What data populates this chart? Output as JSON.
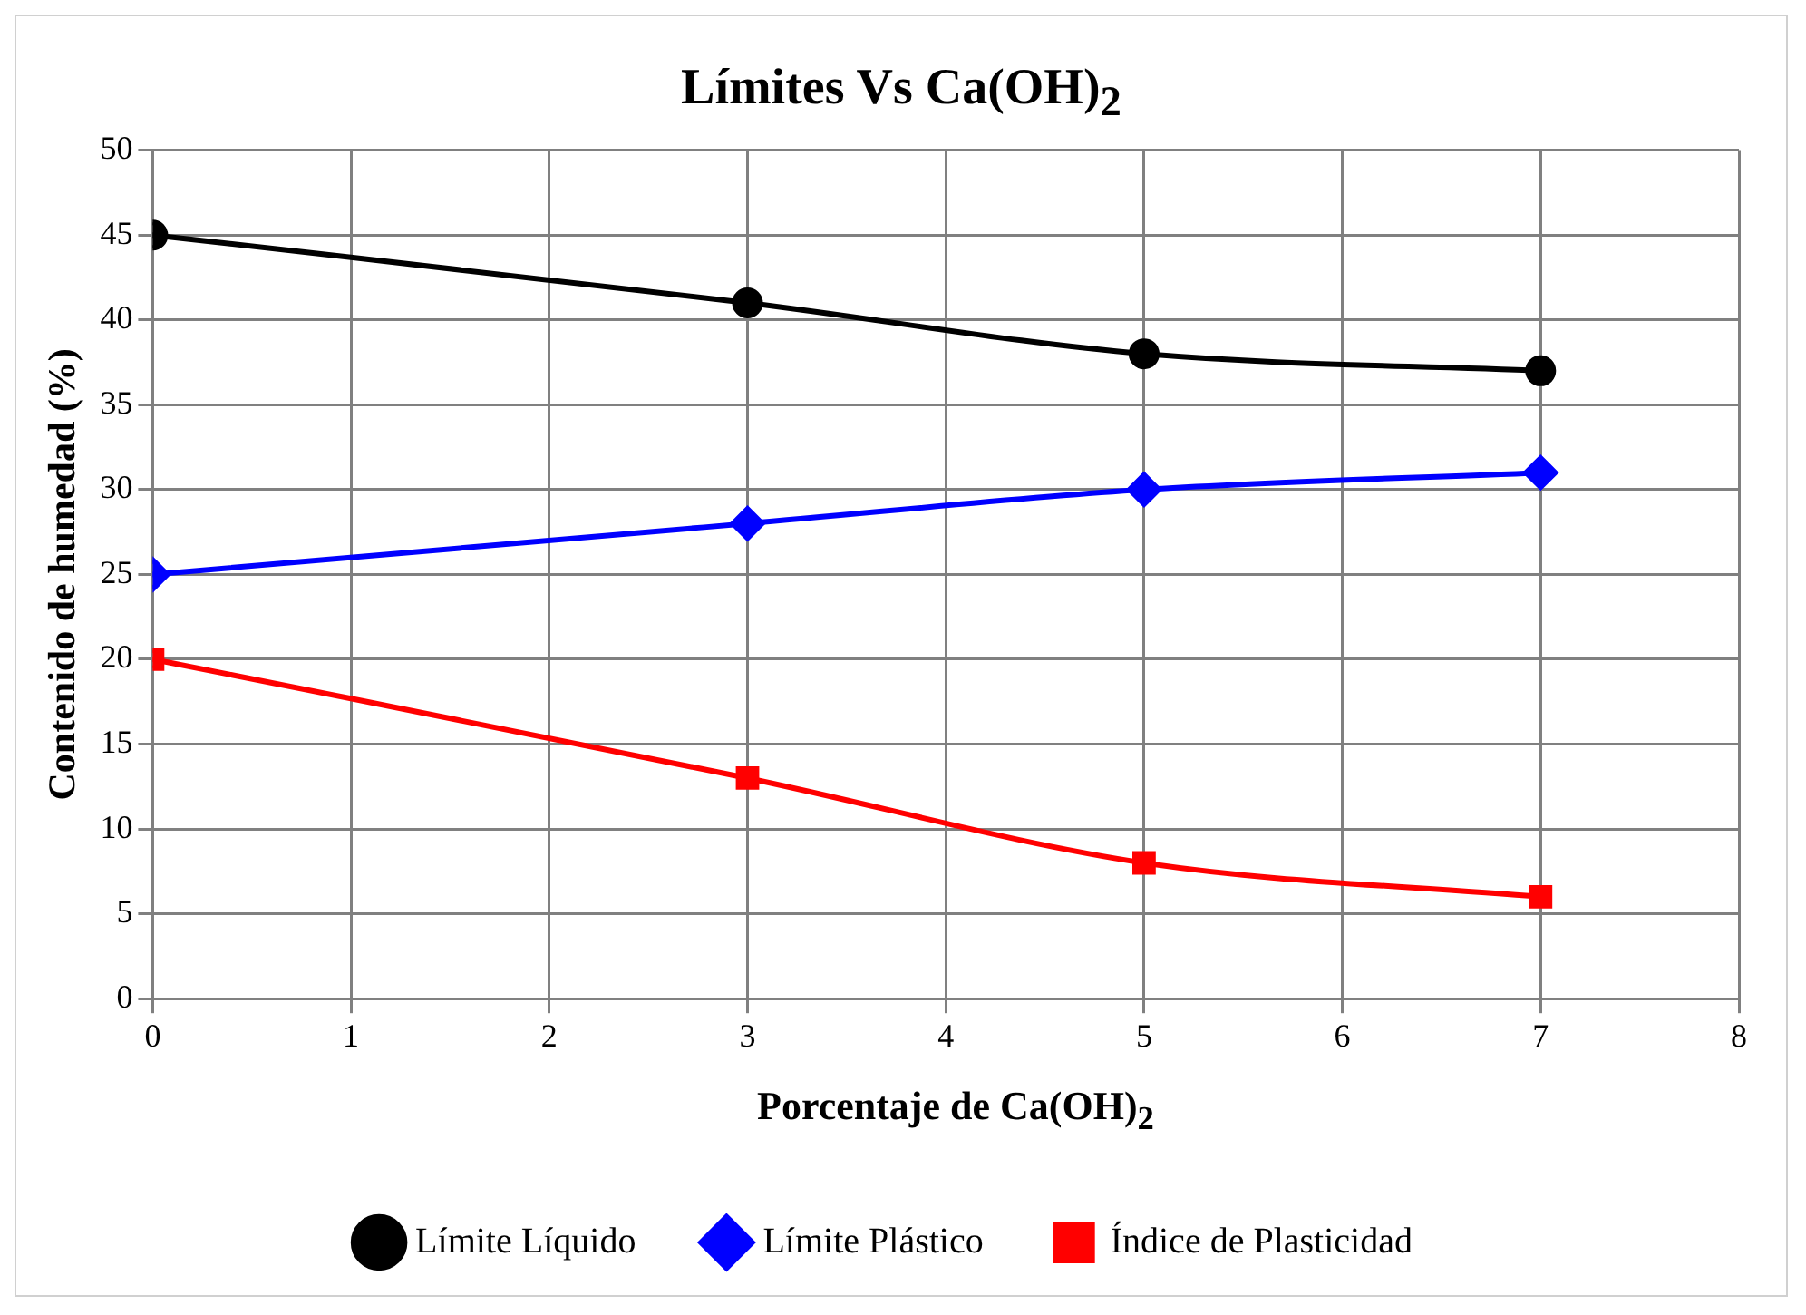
{
  "chart_data": {
    "type": "line",
    "title": "Límites Vs Ca(OH)$_{2}$",
    "xlabel": "Porcentaje de Ca(OH)$_{2}$",
    "ylabel": "Contenido de humedad (%)",
    "x": [
      0,
      3,
      5,
      7
    ],
    "series": [
      {
        "name": "Límite Líquido",
        "color": "#000000",
        "marker": "circle",
        "values": [
          45,
          41,
          38,
          37
        ]
      },
      {
        "name": "Límite Plástico",
        "color": "#0000ff",
        "marker": "diamond",
        "values": [
          25,
          28,
          30,
          31
        ]
      },
      {
        "name": "Índice de Plasticidad",
        "color": "#ff0000",
        "marker": "square",
        "values": [
          20,
          13,
          8,
          6
        ]
      }
    ],
    "xlim": [
      0,
      8
    ],
    "xticks": [
      0,
      1,
      2,
      3,
      4,
      5,
      6,
      7,
      8
    ],
    "ylim": [
      0,
      50
    ],
    "yticks": [
      0,
      5,
      10,
      15,
      20,
      25,
      30,
      35,
      40,
      45,
      50
    ],
    "grid": true,
    "legend": "bottom",
    "line_style": "solid"
  }
}
